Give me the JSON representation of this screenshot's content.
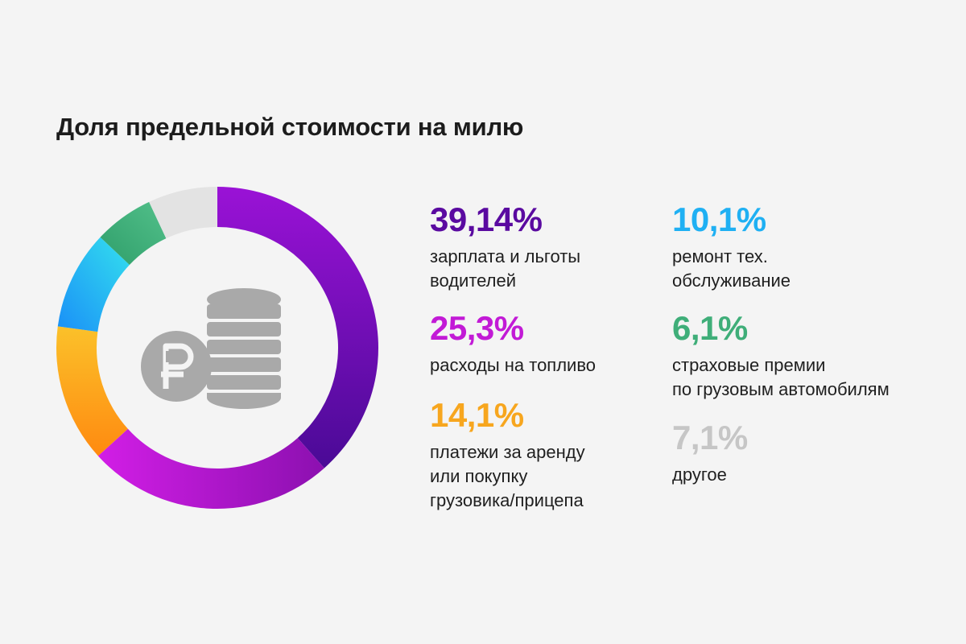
{
  "title": "Доля предельной стоимости на милю",
  "colors": {
    "purple": "#5a0aa0",
    "magenta": "#c21ad6",
    "orange": "#f7a61e",
    "blue": "#1fb0f3",
    "green": "#3fae79",
    "gray": "#c6c6c6",
    "coin": "#a6a6a6"
  },
  "icons": [
    "ruble-coin-icon",
    "coin-stack-icon"
  ],
  "chart_data": {
    "type": "pie",
    "variant": "donut",
    "title": "Доля предельной стоимости на милю",
    "slices": [
      {
        "label": "зарплата и льготы водителей",
        "value": 39.14,
        "display": "39,14%",
        "color": "#5a0aa0"
      },
      {
        "label": "расходы на топливо",
        "value": 25.3,
        "display": "25,3%",
        "color": "#c21ad6"
      },
      {
        "label": "платежи за аренду или покупку грузовика/прицепа",
        "value": 14.1,
        "display": "14,1%",
        "color": "#f7a61e"
      },
      {
        "label": "ремонт тех. обслуживание",
        "value": 10.1,
        "display": "10,1%",
        "color": "#1fb0f3"
      },
      {
        "label": "страховые премии по грузовым автомобилям",
        "value": 6.1,
        "display": "6,1%",
        "color": "#3fae79"
      },
      {
        "label": "другое",
        "value": 7.1,
        "display": "7,1%",
        "color": "#c6c6c6"
      }
    ]
  },
  "legend": [
    {
      "pct": "39,14%",
      "text": "зарплата и льготы\nводителей"
    },
    {
      "pct": "25,3%",
      "text": "расходы на топливо"
    },
    {
      "pct": "14,1%",
      "text": "платежи за аренду\nили покупку\nгрузовика/прицепа"
    },
    {
      "pct": "10,1%",
      "text": "ремонт тех.\nобслуживание"
    },
    {
      "pct": "6,1%",
      "text": "страховые премии\nпо грузовым автомобилям"
    },
    {
      "pct": "7,1%",
      "text": "другое"
    }
  ]
}
